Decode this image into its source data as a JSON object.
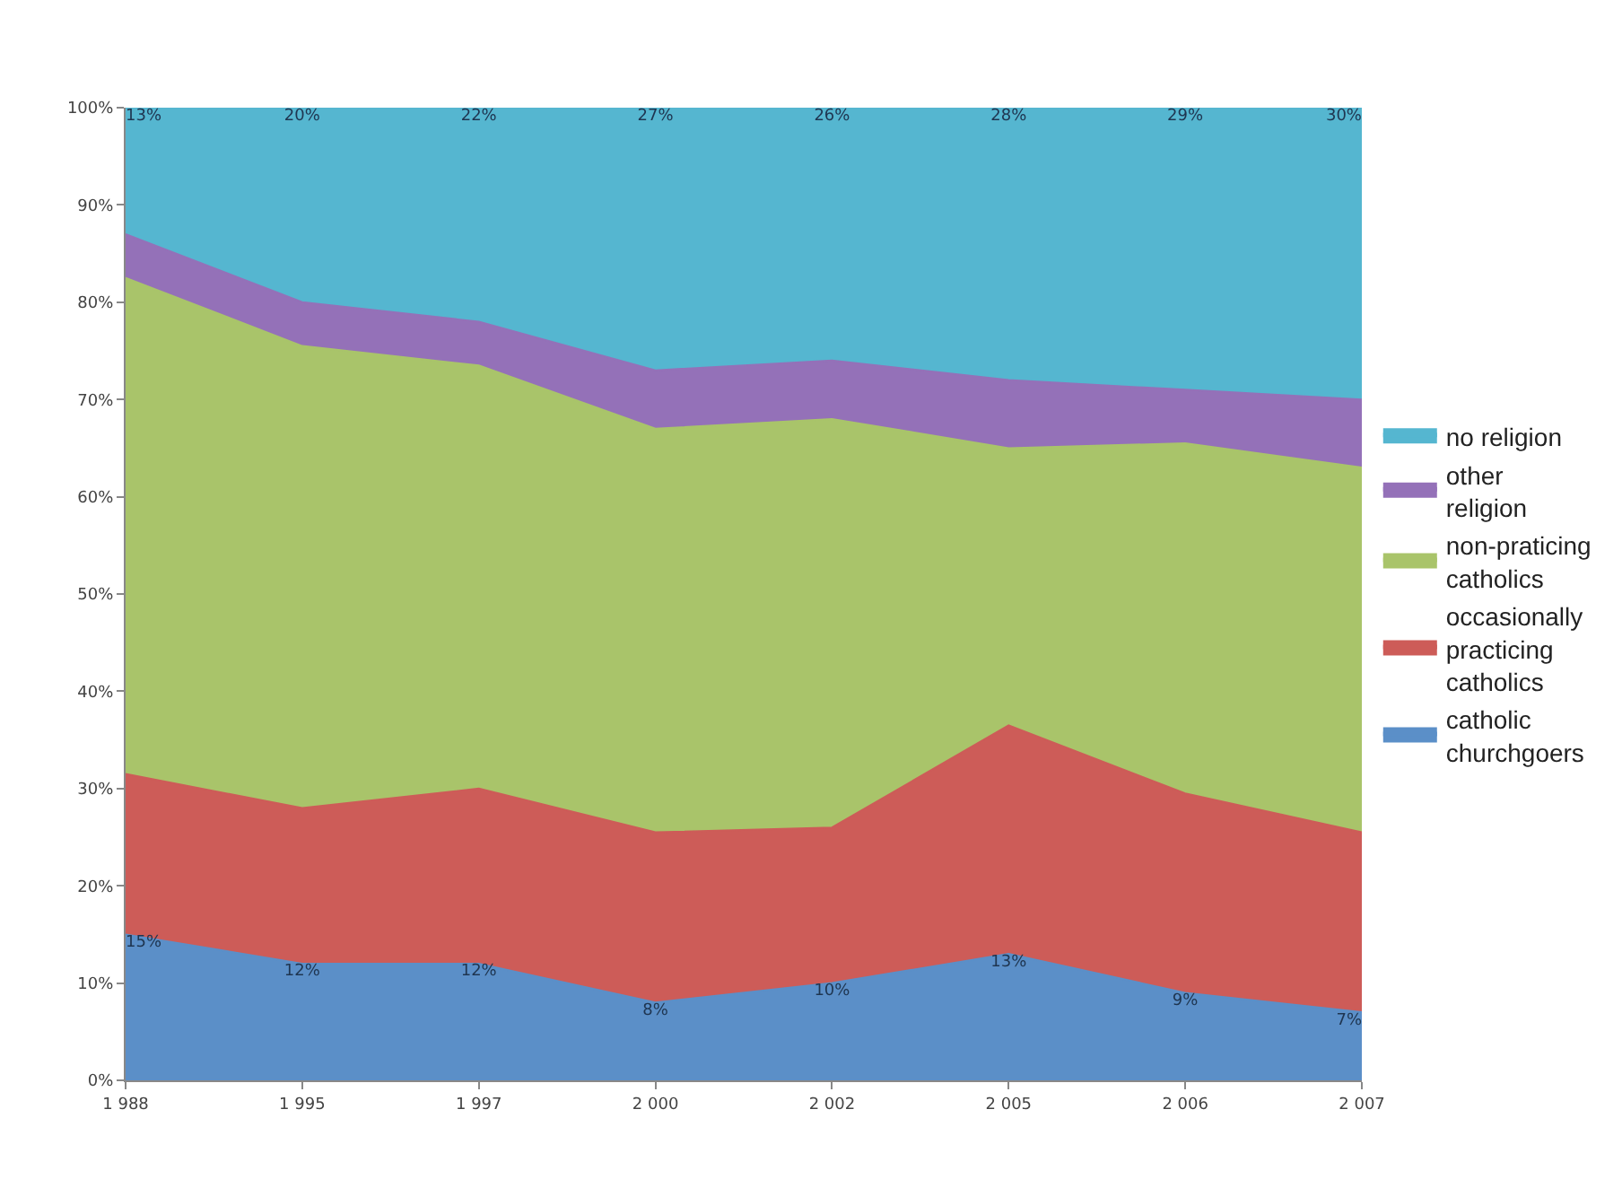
{
  "chart_data": {
    "type": "area",
    "stacked": true,
    "categories": [
      "1 988",
      "1 995",
      "1 997",
      "2 000",
      "2 002",
      "2 005",
      "2 006",
      "2 007"
    ],
    "series": [
      {
        "name": "catholic churchgoers",
        "color": "#5b8fc8",
        "values": [
          15,
          12,
          12,
          8,
          10,
          13,
          9,
          7
        ],
        "value_labels": [
          "15%",
          "12%",
          "12%",
          "8%",
          "10%",
          "13%",
          "9%",
          "7%"
        ]
      },
      {
        "name": "occasionally practicing catholics",
        "color": "#cd5c58",
        "values": [
          16.5,
          16,
          18,
          17.5,
          16,
          23.5,
          20.5,
          18.5
        ]
      },
      {
        "name": "non-praticing catholics",
        "color": "#a9c46a",
        "values": [
          51,
          47.5,
          43.5,
          41.5,
          42,
          28.5,
          36,
          37.5
        ]
      },
      {
        "name": "other religion",
        "color": "#9471b8",
        "values": [
          4.5,
          4.5,
          4.5,
          6,
          6,
          7,
          5.5,
          7
        ]
      },
      {
        "name": "no religion",
        "color": "#55b6d0",
        "values": [
          13,
          20,
          22,
          27,
          26,
          28,
          29,
          30
        ],
        "value_labels": [
          "13%",
          "20%",
          "22%",
          "27%",
          "26%",
          "28%",
          "29%",
          "30%"
        ]
      }
    ],
    "ylim": [
      0,
      100
    ],
    "yticks": [
      {
        "value": 0,
        "label": "0%"
      },
      {
        "value": 10,
        "label": "10%"
      },
      {
        "value": 20,
        "label": "20%"
      },
      {
        "value": 30,
        "label": "30%"
      },
      {
        "value": 40,
        "label": "40%"
      },
      {
        "value": 50,
        "label": "50%"
      },
      {
        "value": 60,
        "label": "60%"
      },
      {
        "value": 70,
        "label": "70%"
      },
      {
        "value": 80,
        "label": "80%"
      },
      {
        "value": 90,
        "label": "90%"
      },
      {
        "value": 100,
        "label": "100%"
      }
    ],
    "legend": "right"
  }
}
